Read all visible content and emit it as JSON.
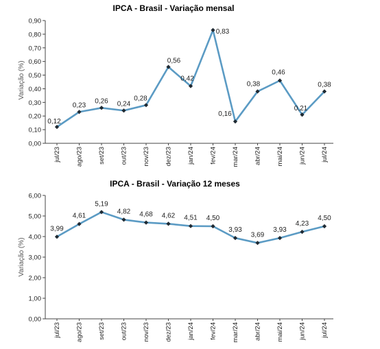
{
  "chart_data": [
    {
      "type": "line",
      "title": "IPCA - Brasil - Variação mensal",
      "xlabel": "",
      "ylabel": "Variação (%)",
      "categories": [
        "jul/23",
        "ago/23",
        "set/23",
        "out/23",
        "nov/23",
        "dez/23",
        "jan/24",
        "fev/24",
        "mar/24",
        "abr/24",
        "mai/24",
        "jun/24",
        "jul/24"
      ],
      "values": [
        0.12,
        0.23,
        0.26,
        0.24,
        0.28,
        0.56,
        0.42,
        0.83,
        0.16,
        0.38,
        0.46,
        0.21,
        0.38
      ],
      "value_labels": [
        "0,12",
        "0,23",
        "0,26",
        "0,24",
        "0,28",
        "0,56",
        "0,42",
        "0,83",
        "0,16",
        "0,38",
        "0,46",
        "0,21",
        "0,38"
      ],
      "ylim": [
        0,
        0.9
      ],
      "yticks": [
        "0,00",
        "0,10",
        "0,20",
        "0,30",
        "0,40",
        "0,50",
        "0,60",
        "0,70",
        "0,80",
        "0,90"
      ],
      "grid": false,
      "line_color": "#5b9bc4",
      "marker_color": "#1f2a33"
    },
    {
      "type": "line",
      "title": "IPCA - Brasil - Variação 12 meses",
      "xlabel": "",
      "ylabel": "Variação (%)",
      "categories": [
        "jul/23",
        "ago/23",
        "set/23",
        "out/23",
        "nov/23",
        "dez/23",
        "jan/24",
        "fev/24",
        "mar/24",
        "abr/24",
        "mai/24",
        "jun/24",
        "jul/24"
      ],
      "values": [
        3.99,
        4.61,
        5.19,
        4.82,
        4.68,
        4.62,
        4.51,
        4.5,
        3.93,
        3.69,
        3.93,
        4.23,
        4.5
      ],
      "value_labels": [
        "3,99",
        "4,61",
        "5,19",
        "4,82",
        "4,68",
        "4,62",
        "4,51",
        "4,50",
        "3,93",
        "3,69",
        "3,93",
        "4,23",
        "4,50"
      ],
      "ylim": [
        0,
        6
      ],
      "yticks": [
        "0,00",
        "1,00",
        "2,00",
        "3,00",
        "4,00",
        "5,00",
        "6,00"
      ],
      "grid": false,
      "line_color": "#5b9bc4",
      "marker_color": "#1f2a33"
    }
  ]
}
